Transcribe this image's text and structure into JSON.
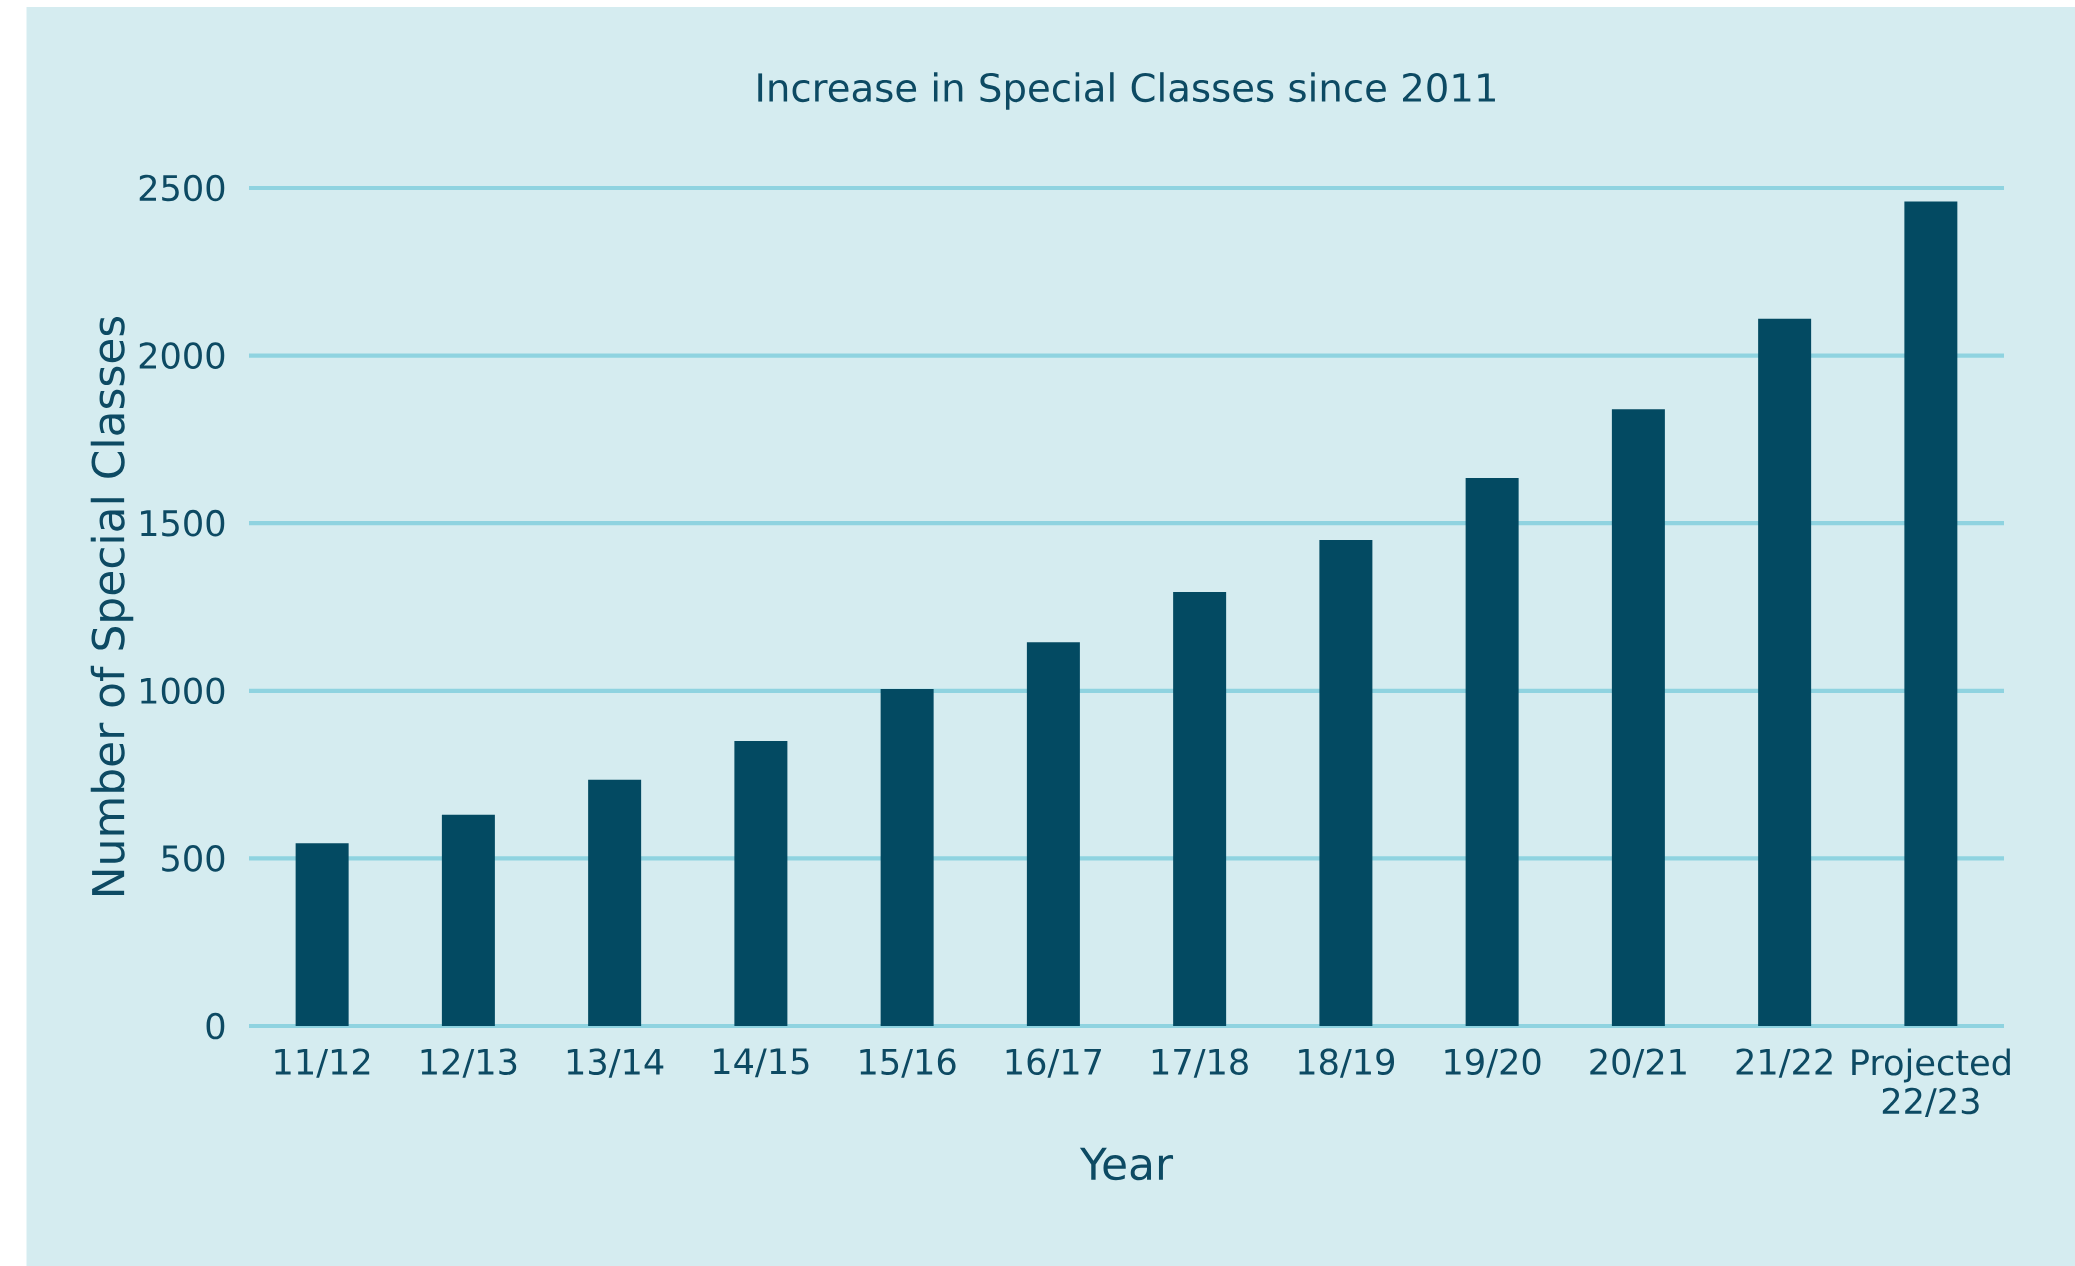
{
  "chart_data": {
    "type": "bar",
    "title": "Increase in Special Classes since 2011",
    "xlabel": "Year",
    "ylabel": "Number of Special Classes",
    "categories": [
      "11/12",
      "12/13",
      "13/14",
      "14/15",
      "15/16",
      "16/17",
      "17/18",
      "18/19",
      "19/20",
      "20/21",
      "21/22",
      "Projected 22/23"
    ],
    "values": [
      545,
      630,
      735,
      850,
      1005,
      1145,
      1295,
      1450,
      1635,
      1840,
      2110,
      2460
    ],
    "color": "#034a62",
    "ylim": [
      0,
      2500
    ],
    "yticks": [
      0,
      500,
      1000,
      1500,
      2000,
      2500
    ],
    "grid": "y"
  }
}
